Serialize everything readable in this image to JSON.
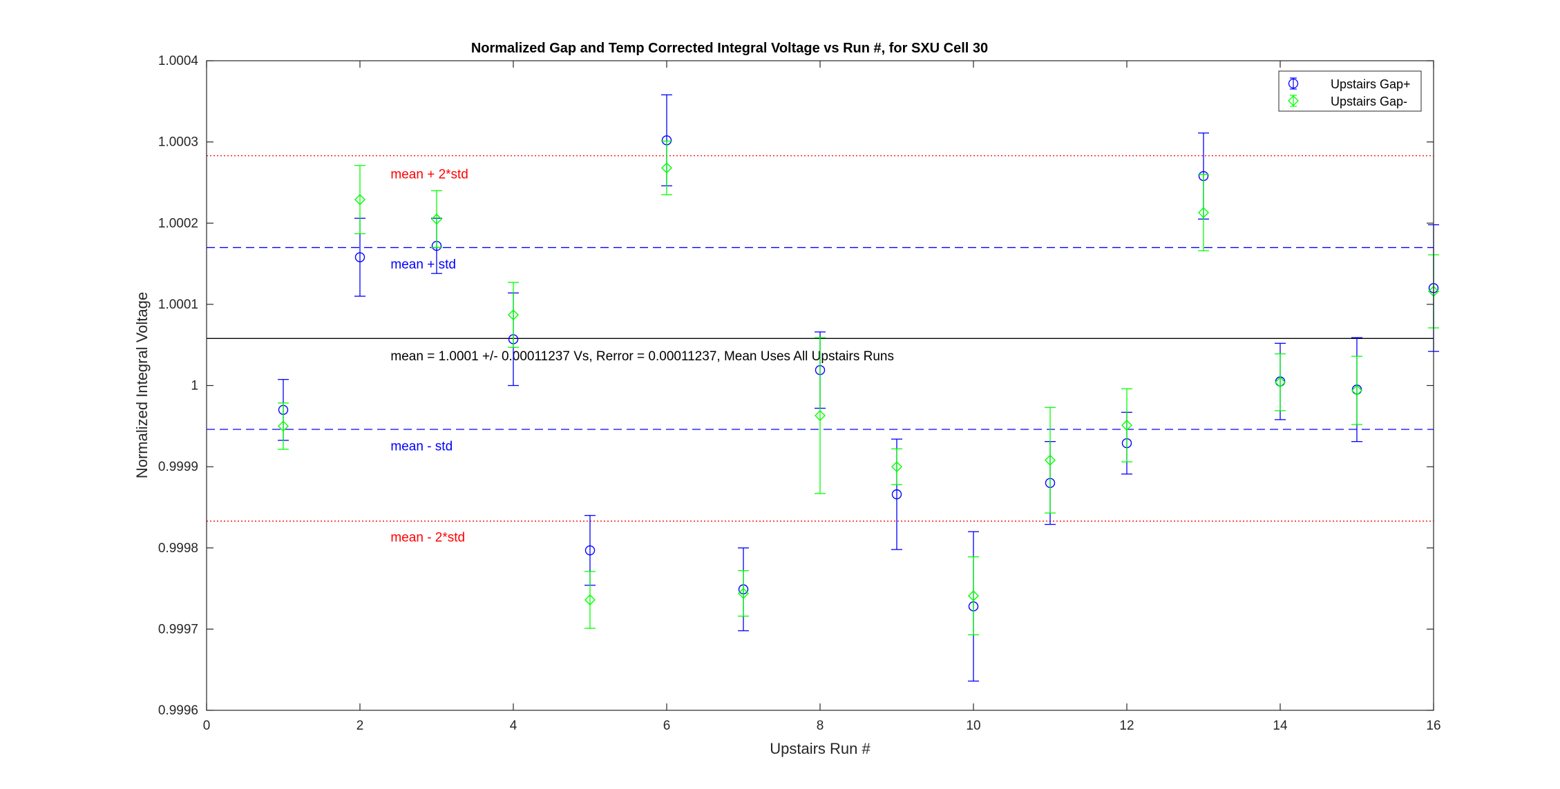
{
  "chart_data": {
    "type": "scatter",
    "title": "Normalized Gap and Temp Corrected Integral Voltage vs Run #, for SXU Cell 30",
    "xlabel": "Upstairs Run #",
    "ylabel": "Normalized Integral Voltage",
    "xlim": [
      0,
      16
    ],
    "ylim": [
      0.9996,
      1.0004
    ],
    "xticks": [
      0,
      2,
      4,
      6,
      8,
      10,
      12,
      14,
      16
    ],
    "xtick_labels": [
      "0",
      "2",
      "4",
      "6",
      "8",
      "10",
      "12",
      "14",
      "16"
    ],
    "yticks": [
      0.9996,
      0.9997,
      0.9998,
      0.9999,
      1.0,
      1.0001,
      1.0002,
      1.0003,
      1.0004
    ],
    "ytick_labels": [
      "0.9996",
      "0.9997",
      "0.9998",
      "0.9999",
      "1",
      "1.0001",
      "1.0002",
      "1.0003",
      "1.0004"
    ],
    "grid": false,
    "legend_position": "top-right",
    "series": [
      {
        "name": "Upstairs Gap+",
        "marker": "circle",
        "color": "#0000ff",
        "x": [
          1,
          2,
          3,
          4,
          5,
          6,
          7,
          8,
          9,
          10,
          11,
          12,
          13,
          14,
          15,
          16
        ],
        "y": [
          0.99997,
          1.000158,
          1.000172,
          1.000057,
          0.999797,
          1.000302,
          0.999749,
          1.000019,
          0.999866,
          0.999728,
          0.99988,
          0.999929,
          1.000258,
          1.000005,
          0.999995,
          1.00012
        ],
        "err": [
          3.75e-05,
          4.8e-05,
          3.4e-05,
          5.7e-05,
          4.3e-05,
          5.6e-05,
          5.1e-05,
          4.7e-05,
          6.8e-05,
          9.2e-05,
          5.1e-05,
          3.8e-05,
          5.3e-05,
          4.7e-05,
          6.4e-05,
          7.8e-05
        ]
      },
      {
        "name": "Upstairs Gap-",
        "marker": "diamond",
        "color": "#00ff00",
        "x": [
          1,
          2,
          3,
          4,
          5,
          6,
          7,
          8,
          9,
          10,
          11,
          12,
          13,
          14,
          15,
          16
        ],
        "y": [
          0.99995,
          1.000229,
          1.000205,
          1.000087,
          0.999736,
          1.000268,
          0.999744,
          0.999963,
          0.9999,
          0.999741,
          0.999908,
          0.999951,
          1.000213,
          1.000004,
          0.999994,
          1.000116
        ],
        "err": [
          2.85e-05,
          4.2e-05,
          3.5e-05,
          4e-05,
          3.5e-05,
          3.3e-05,
          2.8e-05,
          9.6e-05,
          2.2e-05,
          4.8e-05,
          6.5e-05,
          4.5e-05,
          4.7e-05,
          3.5e-05,
          4.2e-05,
          4.5e-05
        ]
      }
    ],
    "reference_lines": [
      {
        "id": "mean",
        "y": 1.000058,
        "color": "#000000",
        "style": "solid"
      },
      {
        "id": "plus1",
        "y": 1.00017,
        "color": "#0000ff",
        "style": "dashed"
      },
      {
        "id": "minus1",
        "y": 0.999946,
        "color": "#0000ff",
        "style": "dashed"
      },
      {
        "id": "plus2",
        "y": 1.000283,
        "color": "#ff0000",
        "style": "dotted"
      },
      {
        "id": "minus2",
        "y": 0.999833,
        "color": "#ff0000",
        "style": "dotted"
      }
    ],
    "annotations": [
      {
        "id": "plus2",
        "text": "mean + 2*std",
        "x": 2.4,
        "y": 1.000261,
        "color": "#ff0000"
      },
      {
        "id": "plus1",
        "text": "mean + std",
        "x": 2.4,
        "y": 1.00015,
        "color": "#0000ff"
      },
      {
        "id": "mean",
        "text": "mean = 1.0001 +/- 0.00011237 Vs, Rerror = 0.00011237, Mean Uses All Upstairs Runs",
        "x": 2.4,
        "y": 1.000037,
        "color": "#000000"
      },
      {
        "id": "minus1",
        "text": "mean - std",
        "x": 2.4,
        "y": 0.999926,
        "color": "#0000ff"
      },
      {
        "id": "minus2",
        "text": "mean - 2*std",
        "x": 2.4,
        "y": 0.999814,
        "color": "#ff0000"
      }
    ]
  }
}
